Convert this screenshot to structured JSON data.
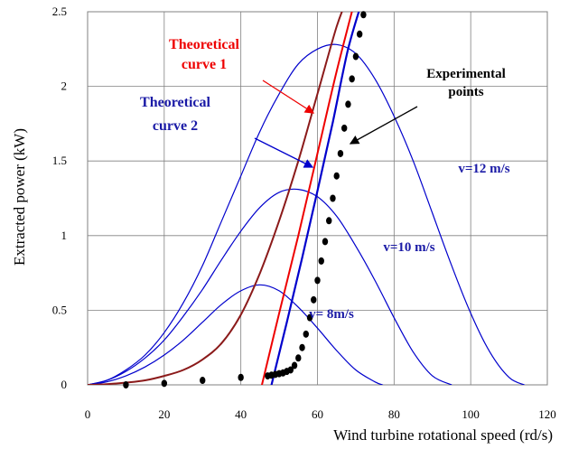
{
  "chart_data": {
    "type": "line",
    "xlabel": "Wind turbine rotational speed (rd/s)",
    "ylabel": "Extracted power (kW)",
    "xlim": [
      0,
      120
    ],
    "ylim": [
      0,
      2.5
    ],
    "xticks": [
      "0",
      "20",
      "40",
      "60",
      "80",
      "100",
      "120"
    ],
    "yticks": [
      "0",
      "0.5",
      "1",
      "1.5",
      "2",
      "2.5"
    ],
    "grid": true,
    "colors": {
      "blue": "#0000cc",
      "red": "#ee0000",
      "darkred": "#8b1a1a",
      "black": "#000000"
    },
    "series": [
      {
        "key": "v12",
        "color": "#0000cc",
        "width": 1.2,
        "x": [
          0,
          5,
          10,
          15,
          20,
          25,
          30,
          35,
          40,
          45,
          50,
          55,
          60,
          65,
          70,
          75,
          80,
          85,
          90,
          95,
          100,
          105,
          110,
          114
        ],
        "y": [
          0,
          0.03,
          0.1,
          0.2,
          0.35,
          0.55,
          0.8,
          1.1,
          1.4,
          1.7,
          1.95,
          2.15,
          2.25,
          2.28,
          2.22,
          2.05,
          1.8,
          1.5,
          1.15,
          0.8,
          0.48,
          0.22,
          0.05,
          0
        ]
      },
      {
        "key": "v10",
        "color": "#0000cc",
        "width": 1.2,
        "x": [
          0,
          5,
          10,
          15,
          20,
          25,
          30,
          35,
          40,
          45,
          50,
          55,
          60,
          65,
          70,
          75,
          80,
          85,
          90,
          95
        ],
        "y": [
          0,
          0.03,
          0.09,
          0.18,
          0.3,
          0.46,
          0.64,
          0.84,
          1.03,
          1.19,
          1.29,
          1.31,
          1.26,
          1.13,
          0.93,
          0.7,
          0.45,
          0.22,
          0.06,
          0
        ]
      },
      {
        "key": "v8",
        "color": "#0000cc",
        "width": 1.2,
        "x": [
          0,
          5,
          10,
          15,
          20,
          25,
          30,
          35,
          40,
          45,
          50,
          55,
          60,
          65,
          70,
          75,
          77
        ],
        "y": [
          0,
          0.02,
          0.06,
          0.12,
          0.2,
          0.3,
          0.42,
          0.54,
          0.63,
          0.67,
          0.63,
          0.52,
          0.38,
          0.23,
          0.1,
          0.02,
          0
        ]
      },
      {
        "key": "experimental-curve-darkred",
        "color": "#8b1a1a",
        "width": 2,
        "x": [
          0,
          5,
          10,
          15,
          20,
          25,
          30,
          35,
          40,
          45,
          50,
          55,
          60,
          65,
          68
        ],
        "y": [
          0,
          0.005,
          0.015,
          0.03,
          0.06,
          0.1,
          0.17,
          0.28,
          0.47,
          0.75,
          1.1,
          1.5,
          1.95,
          2.4,
          2.6
        ]
      },
      {
        "key": "theoretical-curve-1",
        "name": "Theoretical curve 1",
        "color": "#ee0000",
        "width": 2,
        "x": [
          45.5,
          50,
          55,
          60,
          65,
          70
        ],
        "y": [
          0,
          0.48,
          1.0,
          1.55,
          2.1,
          2.6
        ]
      },
      {
        "key": "theoretical-curve-2",
        "name": "Theoretical curve 2",
        "color": "#0000cc",
        "width": 2.2,
        "x": [
          48,
          52,
          56,
          60,
          64,
          68,
          72
        ],
        "y": [
          0,
          0.42,
          0.85,
          1.3,
          1.76,
          2.25,
          2.6
        ]
      }
    ],
    "points": {
      "name": "Experimental points",
      "color": "#000000",
      "x": [
        10,
        20,
        30,
        40,
        47,
        48,
        49,
        50,
        51,
        52,
        53,
        54,
        55,
        56,
        57,
        58,
        59,
        60,
        61,
        62,
        63,
        64,
        65,
        66,
        67,
        68,
        69,
        70,
        71,
        72
      ],
      "y": [
        0,
        0.01,
        0.03,
        0.05,
        0.06,
        0.065,
        0.07,
        0.075,
        0.08,
        0.09,
        0.1,
        0.13,
        0.18,
        0.25,
        0.34,
        0.45,
        0.57,
        0.7,
        0.83,
        0.96,
        1.1,
        1.25,
        1.4,
        1.55,
        1.72,
        1.88,
        2.05,
        2.2,
        2.35,
        2.48
      ]
    },
    "annotations": {
      "theoretical_curve_1": [
        "Theoretical",
        "curve 1"
      ],
      "theoretical_curve_2": [
        "Theoretical",
        "curve 2"
      ],
      "experimental_points": [
        "Experimental",
        "points"
      ],
      "v12": "v=12 m/s",
      "v10": "v=10 m/s",
      "v8": "v= 8m/s"
    }
  }
}
